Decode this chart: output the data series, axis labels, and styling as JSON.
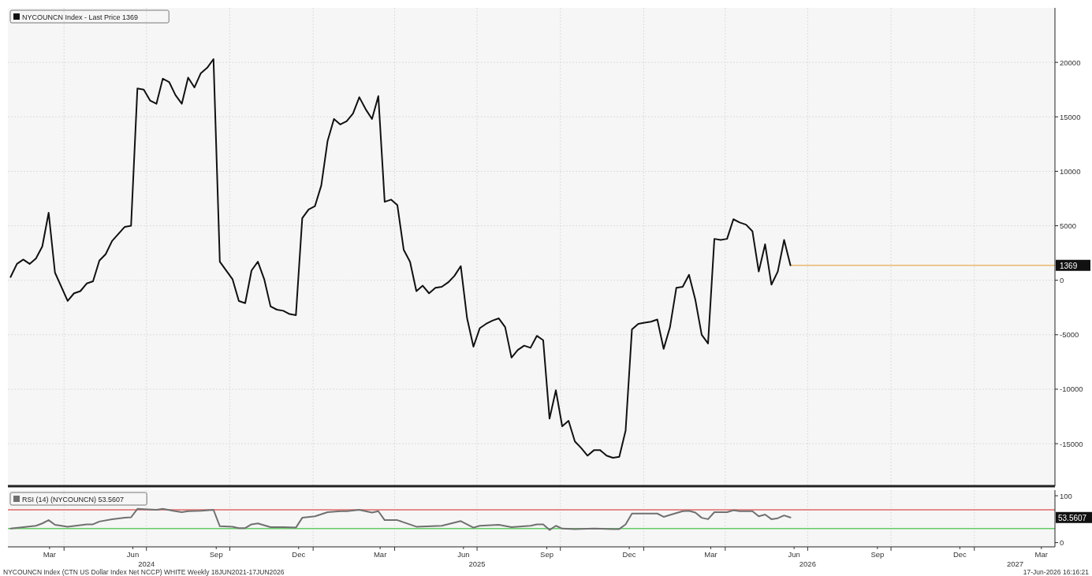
{
  "chart_data": [
    {
      "type": "line",
      "legend": "top left",
      "grid": true,
      "tick_labels": "y",
      "xlim": [
        "2024-01-30",
        "2027-03-31"
      ],
      "ylim": [
        -18900,
        25000
      ],
      "yticks": [
        -15000,
        -10000,
        -5000,
        0,
        5000,
        10000,
        15000,
        20000
      ],
      "xticks": [
        {
          "value": "2024-04-01",
          "label": null
        },
        {
          "value": "2024-07-01",
          "label": null
        },
        {
          "value": "2024-10-01",
          "label": null
        },
        {
          "value": "2025-01-01",
          "label": null
        },
        {
          "value": "2025-04-01",
          "label": null
        },
        {
          "value": "2025-07-01",
          "label": null
        },
        {
          "value": "2025-10-01",
          "label": null
        },
        {
          "value": "2026-01-01",
          "label": null
        },
        {
          "value": "2026-04-01",
          "label": null
        },
        {
          "value": "2026-07-01",
          "label": null
        },
        {
          "value": "2026-10-01",
          "label": null
        },
        {
          "value": "2027-01-01",
          "label": null
        }
      ],
      "ref_lines": [
        {
          "axis": "y",
          "value": 1369,
          "label": "1369",
          "color": "#e8b86d"
        }
      ],
      "series": [
        {
          "name": "NYCOUNCN Index - Last Price 1369",
          "color": "#111111",
          "x": [
            "2024-02-02",
            "2024-02-09",
            "2024-02-16",
            "2024-02-23",
            "2024-03-01",
            "2024-03-08",
            "2024-03-15",
            "2024-03-22",
            "2024-04-05",
            "2024-04-12",
            "2024-04-19",
            "2024-04-26",
            "2024-05-03",
            "2024-05-10",
            "2024-05-17",
            "2024-05-24",
            "2024-06-07",
            "2024-06-14",
            "2024-06-21",
            "2024-06-28",
            "2024-07-05",
            "2024-07-12",
            "2024-07-19",
            "2024-07-26",
            "2024-08-02",
            "2024-08-09",
            "2024-08-16",
            "2024-08-23",
            "2024-08-30",
            "2024-09-06",
            "2024-09-13",
            "2024-09-20",
            "2024-10-04",
            "2024-10-11",
            "2024-10-18",
            "2024-10-25",
            "2024-11-01",
            "2024-11-08",
            "2024-11-15",
            "2024-11-22",
            "2024-11-29",
            "2024-12-06",
            "2024-12-13",
            "2024-12-20",
            "2024-12-27",
            "2025-01-03",
            "2025-01-10",
            "2025-01-17",
            "2025-01-24",
            "2025-01-31",
            "2025-02-07",
            "2025-02-14",
            "2025-02-21",
            "2025-02-28",
            "2025-03-07",
            "2025-03-14",
            "2025-03-21",
            "2025-03-28",
            "2025-04-04",
            "2025-04-11",
            "2025-04-18",
            "2025-04-25",
            "2025-05-02",
            "2025-05-09",
            "2025-05-16",
            "2025-05-23",
            "2025-05-30",
            "2025-06-06",
            "2025-06-13",
            "2025-06-20",
            "2025-06-27",
            "2025-07-04",
            "2025-07-11",
            "2025-07-18",
            "2025-07-25",
            "2025-08-01",
            "2025-08-08",
            "2025-08-15",
            "2025-08-22",
            "2025-08-29",
            "2025-09-05",
            "2025-09-12",
            "2025-09-19",
            "2025-09-26",
            "2025-10-03",
            "2025-10-10",
            "2025-10-17",
            "2025-10-24",
            "2025-10-31",
            "2025-11-07",
            "2025-11-14",
            "2025-11-21",
            "2025-11-28",
            "2025-12-05",
            "2025-12-12",
            "2025-12-19",
            "2025-12-26",
            "2026-01-02",
            "2026-01-09",
            "2026-01-16",
            "2026-01-23",
            "2026-01-30",
            "2026-02-06",
            "2026-02-13",
            "2026-02-20",
            "2026-02-27",
            "2026-03-06",
            "2026-03-13",
            "2026-03-20",
            "2026-03-27",
            "2026-04-03",
            "2026-04-10",
            "2026-04-17",
            "2026-04-24",
            "2026-05-01",
            "2026-05-08",
            "2026-05-15",
            "2026-05-22",
            "2026-05-29",
            "2026-06-05",
            "2026-06-12"
          ],
          "values": [
            300,
            1500,
            1900,
            1500,
            2000,
            3100,
            6200,
            700,
            -1900,
            -1200,
            -1000,
            -300,
            -100,
            1800,
            2400,
            3600,
            4900,
            5000,
            17600,
            17500,
            16500,
            16200,
            18500,
            18200,
            17000,
            16200,
            18600,
            17700,
            19000,
            19500,
            20300,
            1700,
            100,
            -1900,
            -2100,
            900,
            1700,
            100,
            -2400,
            -2700,
            -2800,
            -3100,
            -3200,
            5700,
            6500,
            6800,
            8700,
            12800,
            14800,
            14300,
            14600,
            15300,
            16800,
            15700,
            14800,
            16900,
            7200,
            7400,
            6900,
            2800,
            1700,
            -1000,
            -500,
            -1200,
            -700,
            -600,
            -200,
            400,
            1300,
            -3500,
            -6100,
            -4400,
            -4000,
            -3700,
            -3500,
            -4300,
            -7100,
            -6400,
            -6000,
            -6200,
            -5100,
            -5500,
            -12700,
            -10100,
            -13400,
            -12900,
            -14800,
            -15400,
            -16100,
            -15600,
            -15600,
            -16100,
            -16300,
            -16200,
            -13800,
            -4500,
            -4000,
            -3900,
            -3800,
            -3600,
            -6300,
            -4300,
            -700,
            -600,
            500,
            -1800,
            -5000,
            -5800,
            3800,
            3700,
            3800,
            5600,
            5300,
            5100,
            4500,
            800,
            3300,
            -400,
            800,
            3700,
            1369
          ]
        }
      ]
    },
    {
      "type": "line",
      "legend": "top left",
      "grid": "x",
      "xlim": [
        "2024-01-30",
        "2027-03-31"
      ],
      "ylim": [
        -9,
        112
      ],
      "yticks": [
        0,
        100
      ],
      "xticks": [
        {
          "value": "2024-03-16",
          "label": "Mar"
        },
        {
          "value": "2024-06-16",
          "label": "Jun"
        },
        {
          "value": "2024-09-16",
          "label": "Sep"
        },
        {
          "value": "2024-12-16",
          "label": "Dec"
        },
        {
          "value": "2025-03-16",
          "label": "Mar"
        },
        {
          "value": "2025-06-16",
          "label": "Jun"
        },
        {
          "value": "2025-09-16",
          "label": "Sep"
        },
        {
          "value": "2025-12-16",
          "label": "Dec"
        },
        {
          "value": "2026-03-16",
          "label": "Mar"
        },
        {
          "value": "2026-06-16",
          "label": "Jun"
        },
        {
          "value": "2026-09-16",
          "label": "Sep"
        },
        {
          "value": "2026-12-16",
          "label": "Dec"
        },
        {
          "value": "2027-03-16",
          "label": "Mar"
        },
        {
          "value": "2024-04-01",
          "label": null
        },
        {
          "value": "2024-07-01",
          "label": null
        },
        {
          "value": "2024-10-01",
          "label": null
        },
        {
          "value": "2025-01-01",
          "label": null
        },
        {
          "value": "2025-04-01",
          "label": null
        },
        {
          "value": "2025-07-01",
          "label": null
        },
        {
          "value": "2025-10-01",
          "label": null
        },
        {
          "value": "2026-01-01",
          "label": null
        },
        {
          "value": "2026-04-01",
          "label": null
        },
        {
          "value": "2026-07-01",
          "label": null
        },
        {
          "value": "2026-10-01",
          "label": null
        },
        {
          "value": "2027-01-01",
          "label": null
        }
      ],
      "ref_lines": [
        {
          "axis": "y",
          "value": 70,
          "color": "#e06666"
        },
        {
          "axis": "y",
          "value": 30,
          "color": "#66cc66"
        }
      ],
      "x2lim": [
        "2024-01-30",
        "2027-03-31"
      ],
      "x2ticks": [
        {
          "value": "2024-07-01",
          "label": "2024"
        },
        {
          "value": "2025-07-01",
          "label": "2025"
        },
        {
          "value": "2026-07-01",
          "label": "2026"
        },
        {
          "value": "2027-02-15",
          "label": "2027"
        }
      ],
      "annotations": [
        "53.5607",
        "NYCOUNCN Index (CTN US Dollar Index Net NCCP) WHITE Weekly 18JUN2021-17JUN2026",
        "17-Jun-2026 16:16:21"
      ],
      "series": [
        {
          "name": "RSI (14) (NYCOUNCN) 53.5607",
          "color": "#707070",
          "x": [
            "2024-02-02",
            "2024-02-16",
            "2024-03-01",
            "2024-03-08",
            "2024-03-15",
            "2024-03-22",
            "2024-04-05",
            "2024-04-26",
            "2024-05-03",
            "2024-05-10",
            "2024-05-24",
            "2024-06-07",
            "2024-06-14",
            "2024-06-21",
            "2024-07-12",
            "2024-07-19",
            "2024-08-02",
            "2024-08-09",
            "2024-08-16",
            "2024-08-30",
            "2024-09-13",
            "2024-09-20",
            "2024-10-04",
            "2024-10-11",
            "2024-10-18",
            "2024-10-25",
            "2024-11-01",
            "2024-11-15",
            "2024-11-29",
            "2024-12-13",
            "2024-12-20",
            "2025-01-03",
            "2025-01-17",
            "2025-01-31",
            "2025-02-07",
            "2025-02-21",
            "2025-03-07",
            "2025-03-14",
            "2025-03-21",
            "2025-04-04",
            "2025-04-25",
            "2025-05-23",
            "2025-06-13",
            "2025-06-27",
            "2025-07-04",
            "2025-07-25",
            "2025-08-08",
            "2025-08-29",
            "2025-09-05",
            "2025-09-12",
            "2025-09-19",
            "2025-09-26",
            "2025-10-03",
            "2025-10-17",
            "2025-11-07",
            "2025-11-28",
            "2025-12-05",
            "2025-12-12",
            "2025-12-19",
            "2026-01-02",
            "2026-01-16",
            "2026-01-23",
            "2026-01-30",
            "2026-02-13",
            "2026-02-20",
            "2026-02-27",
            "2026-03-06",
            "2026-03-13",
            "2026-03-20",
            "2026-04-03",
            "2026-04-10",
            "2026-04-17",
            "2026-05-01",
            "2026-05-08",
            "2026-05-15",
            "2026-05-22",
            "2026-05-29",
            "2026-06-05",
            "2026-06-12"
          ],
          "values": [
            30,
            33,
            36,
            41,
            48,
            38,
            34,
            39,
            39,
            45,
            50,
            53,
            54,
            72,
            70,
            72,
            67,
            65,
            67,
            68,
            70,
            35,
            34,
            31,
            31,
            39,
            41,
            33,
            33,
            32,
            53,
            56,
            65,
            67,
            67,
            70,
            64,
            67,
            48,
            48,
            34,
            36,
            46,
            32,
            36,
            38,
            33,
            36,
            39,
            39,
            27,
            36,
            30,
            29,
            30,
            29,
            29,
            39,
            62,
            62,
            62,
            55,
            59,
            67,
            68,
            64,
            53,
            50,
            65,
            65,
            69,
            67,
            67,
            56,
            60,
            50,
            52,
            58,
            53.5607
          ]
        }
      ]
    }
  ]
}
